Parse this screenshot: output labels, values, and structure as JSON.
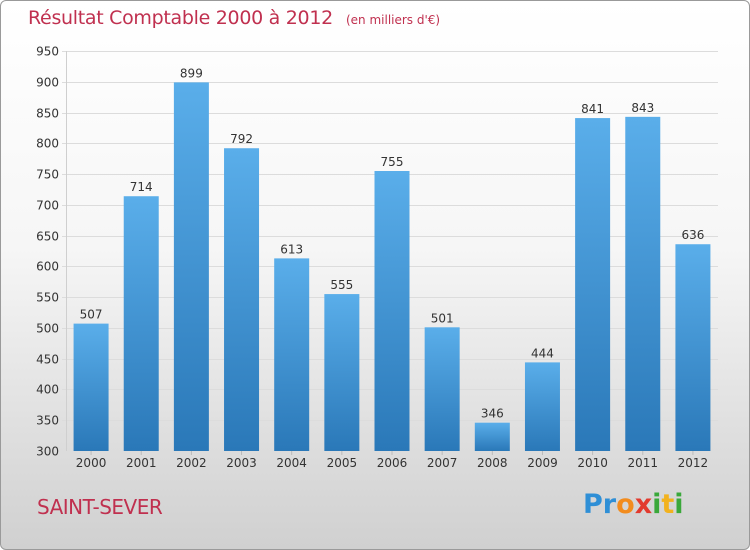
{
  "chart_data": {
    "type": "bar",
    "title": "Résultat Comptable 2000 à 2012",
    "subtitle": "(en milliers d'€)",
    "categories": [
      "2000",
      "2001",
      "2002",
      "2003",
      "2004",
      "2005",
      "2006",
      "2007",
      "2008",
      "2009",
      "2010",
      "2011",
      "2012"
    ],
    "values": [
      507,
      714,
      899,
      792,
      613,
      555,
      755,
      501,
      346,
      444,
      841,
      843,
      636
    ],
    "xlabel": "",
    "ylabel": "",
    "ylim": [
      300,
      950
    ],
    "yticks": [
      300,
      350,
      400,
      450,
      500,
      550,
      600,
      650,
      700,
      750,
      800,
      850,
      900,
      950
    ],
    "grid": true
  },
  "location": "SAINT-SEVER",
  "logo": {
    "letters": [
      "P",
      "r",
      "o",
      "x",
      "i",
      "t",
      "i"
    ],
    "colors": [
      "#2f8fd6",
      "#2f8fd6",
      "#f28c1e",
      "#e23a2e",
      "#3aa83a",
      "#f2b21e",
      "#3aa83a"
    ]
  },
  "colors": {
    "bar_top": "#5aaeea",
    "bar_bottom": "#2a78b8",
    "title": "#c0304f"
  }
}
